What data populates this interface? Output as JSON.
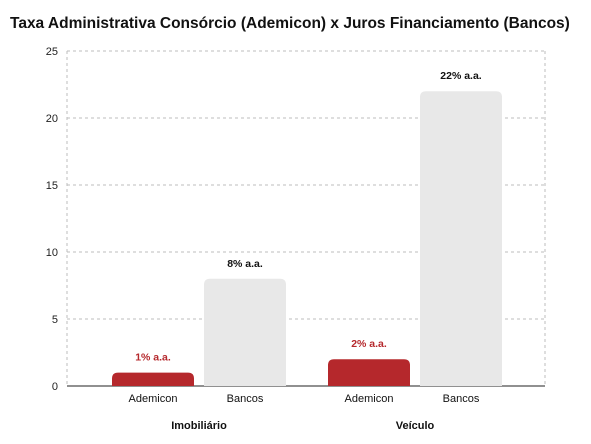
{
  "chart_data": {
    "type": "bar",
    "title": "Taxa Administrativa Consórcio (Ademicon) x Juros Financiamento (Bancos)",
    "xlabel": "",
    "ylabel": "",
    "ylim": [
      0,
      25
    ],
    "yticks": [
      0,
      5,
      10,
      15,
      20,
      25
    ],
    "grid": true,
    "groups": [
      {
        "label": "Imobiliário",
        "bars": [
          {
            "category": "Ademicon",
            "value": 1,
            "label": "1% a.a.",
            "color": "#b5282c",
            "label_color": "#b5282c"
          },
          {
            "category": "Bancos",
            "value": 8,
            "label": "8% a.a.",
            "color": "#e8e8e8",
            "label_color": "#111111"
          }
        ]
      },
      {
        "label": "Veículo",
        "bars": [
          {
            "category": "Ademicon",
            "value": 2,
            "label": "2% a.a.",
            "color": "#b5282c",
            "label_color": "#b5282c"
          },
          {
            "category": "Bancos",
            "value": 22,
            "label": "22% a.a.",
            "color": "#e8e8e8",
            "label_color": "#111111"
          }
        ]
      }
    ]
  }
}
